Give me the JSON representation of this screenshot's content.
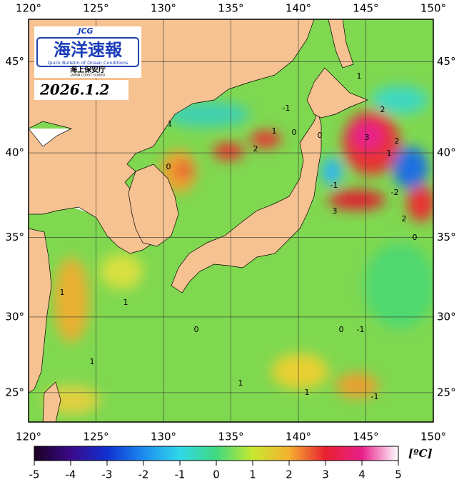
{
  "header": {
    "logo_mark": "JCG",
    "logo_title": "海洋速報",
    "logo_subtitle": "Quick Bulletin of Ocean Conditions",
    "agency": "海上保安庁",
    "agency_en": "JAPAN COAST GUARD",
    "date": "2026.1.2"
  },
  "map": {
    "projection": "mercator",
    "lon_range": [
      120,
      150
    ],
    "lat_range": [
      23,
      47.2
    ],
    "lon_ticks": [
      {
        "value": 120,
        "label": "120°"
      },
      {
        "value": 125,
        "label": "125°"
      },
      {
        "value": 130,
        "label": "130°"
      },
      {
        "value": 135,
        "label": "135°"
      },
      {
        "value": 140,
        "label": "140°"
      },
      {
        "value": 145,
        "label": "145°"
      },
      {
        "value": 150,
        "label": "150°"
      }
    ],
    "lat_ticks": [
      {
        "value": 25,
        "label": "25°"
      },
      {
        "value": 30,
        "label": "30°"
      },
      {
        "value": 35,
        "label": "35°"
      },
      {
        "value": 40,
        "label": "40°"
      },
      {
        "value": 45,
        "label": "45°"
      }
    ],
    "grid": true,
    "contour_labels": [
      "1",
      "0",
      "-1",
      "2",
      "3",
      "2",
      "0",
      "1",
      "2",
      "-1",
      "-2",
      "1",
      "3",
      "2",
      "0",
      "1",
      "0",
      "1",
      "1",
      "0",
      "-1",
      "1",
      "1",
      "-1",
      "0",
      "1"
    ]
  },
  "colorbar": {
    "range": [
      -5,
      5
    ],
    "ticks": [
      -5,
      -4,
      -3,
      -2,
      -1,
      0,
      1,
      2,
      3,
      4,
      5
    ],
    "unit": "[ºC]"
  }
}
